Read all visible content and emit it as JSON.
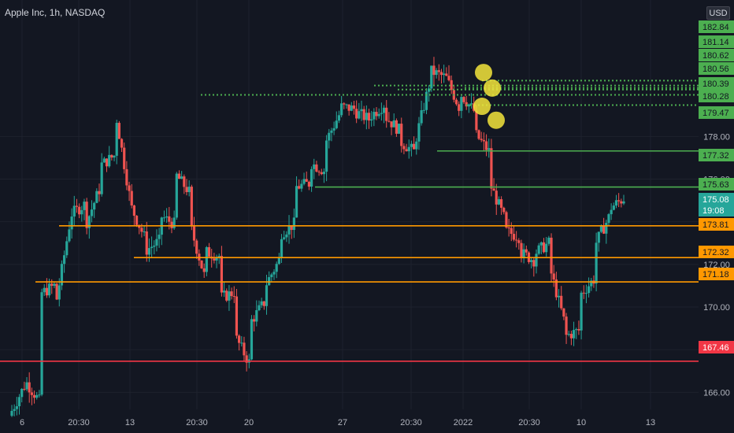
{
  "chart_data": {
    "type": "candlestick",
    "title": "Apple Inc, 1h, NASDAQ",
    "currency": "USD",
    "ylim": [
      165.2,
      184.4
    ],
    "y_ticks": [
      "166.00",
      "168.00",
      "170.00",
      "172.00",
      "174.00",
      "176.00",
      "178.00"
    ],
    "x_ticks": [
      "6",
      "20:30",
      "13",
      "20:30",
      "20",
      "27",
      "20:30",
      "2022",
      "20:30",
      "10",
      "13"
    ],
    "price_labels": [
      {
        "value": "182.84",
        "kind": "plain"
      },
      {
        "value": "181.14",
        "kind": "plain"
      },
      {
        "value": "180.62",
        "kind": "green"
      },
      {
        "value": "180.56",
        "kind": "plain"
      },
      {
        "value": "180.39",
        "kind": "plain"
      },
      {
        "value": "180.28",
        "kind": "plain"
      },
      {
        "value": "179.47",
        "kind": "plain"
      },
      {
        "value": "177.32",
        "kind": "green"
      },
      {
        "value": "175.63",
        "kind": "green"
      },
      {
        "value": "175.08",
        "kind": "last"
      },
      {
        "value": "19:08",
        "kind": "countdown"
      },
      {
        "value": "173.81",
        "kind": "orange"
      },
      {
        "value": "172.32",
        "kind": "orange"
      },
      {
        "value": "171.18",
        "kind": "orange"
      },
      {
        "value": "167.46",
        "kind": "red"
      }
    ],
    "horizontal_levels": [
      {
        "price": 180.62,
        "style": "dotted",
        "color": "#4caf50"
      },
      {
        "price": 179.95,
        "style": "dotted",
        "color": "#4caf50"
      },
      {
        "price": 180.39,
        "style": "dotted",
        "color": "#4caf50"
      },
      {
        "price": 180.28,
        "style": "dotted",
        "color": "#4caf50"
      },
      {
        "price": 180.2,
        "style": "dotted",
        "color": "#4caf50"
      },
      {
        "price": 179.47,
        "style": "dotted",
        "color": "#4caf50"
      },
      {
        "price": 177.32,
        "style": "solid",
        "color": "#4caf50"
      },
      {
        "price": 175.63,
        "style": "solid",
        "color": "#4caf50"
      },
      {
        "price": 173.81,
        "style": "solid",
        "color": "#ff9800"
      },
      {
        "price": 172.32,
        "style": "solid",
        "color": "#ff9800"
      },
      {
        "price": 171.18,
        "style": "solid",
        "color": "#ff9800"
      },
      {
        "price": 167.46,
        "style": "solid",
        "color": "#f23645"
      }
    ],
    "highlighted_candles": [
      {
        "price": 181.0
      },
      {
        "price": 180.3
      },
      {
        "price": 179.9
      },
      {
        "price": 179.5
      }
    ],
    "colors": {
      "up": "#26a69a",
      "down": "#ef5350",
      "background": "#131722",
      "text": "#b2b5be",
      "axis_label_bg": "#131722",
      "highlight": "#f5e53b"
    },
    "series_anchor_prices": [
      [
        164.9,
        166.3
      ],
      [
        166.6,
        165.6
      ],
      [
        170.6,
        171.0
      ],
      [
        169.7,
        173.8
      ],
      [
        174.3,
        174.8
      ],
      [
        173.7,
        175.5
      ],
      [
        176.6,
        177.1
      ],
      [
        179.5,
        175.3
      ],
      [
        174.9,
        173.3
      ],
      [
        172.6,
        173.1
      ],
      [
        174.3,
        173.9
      ],
      [
        176.3,
        175.4
      ],
      [
        174.0,
        171.5
      ],
      [
        172.6,
        172.4
      ],
      [
        170.4,
        170.7
      ],
      [
        168.7,
        167.4
      ],
      [
        169.2,
        170.2
      ],
      [
        170.9,
        172.2
      ],
      [
        173.4,
        173.9
      ],
      [
        175.6,
        175.8
      ],
      [
        176.8,
        176.4
      ],
      [
        177.6,
        179.0
      ],
      [
        179.4,
        179.3
      ],
      [
        179.2,
        178.8
      ],
      [
        178.9,
        179.5
      ],
      [
        179.0,
        178.3
      ],
      [
        177.8,
        177.3
      ],
      [
        177.5,
        180.4
      ],
      [
        181.1,
        180.8
      ],
      [
        181.0,
        179.4
      ],
      [
        180.1,
        179.2
      ],
      [
        178.2,
        177.3
      ],
      [
        175.9,
        174.2
      ],
      [
        173.6,
        173.3
      ],
      [
        172.6,
        172.2
      ],
      [
        172.5,
        173.0
      ],
      [
        172.0,
        169.4
      ],
      [
        168.6,
        168.9
      ],
      [
        170.5,
        171.3
      ],
      [
        172.8,
        174.2
      ],
      [
        174.6,
        175.1
      ]
    ]
  }
}
